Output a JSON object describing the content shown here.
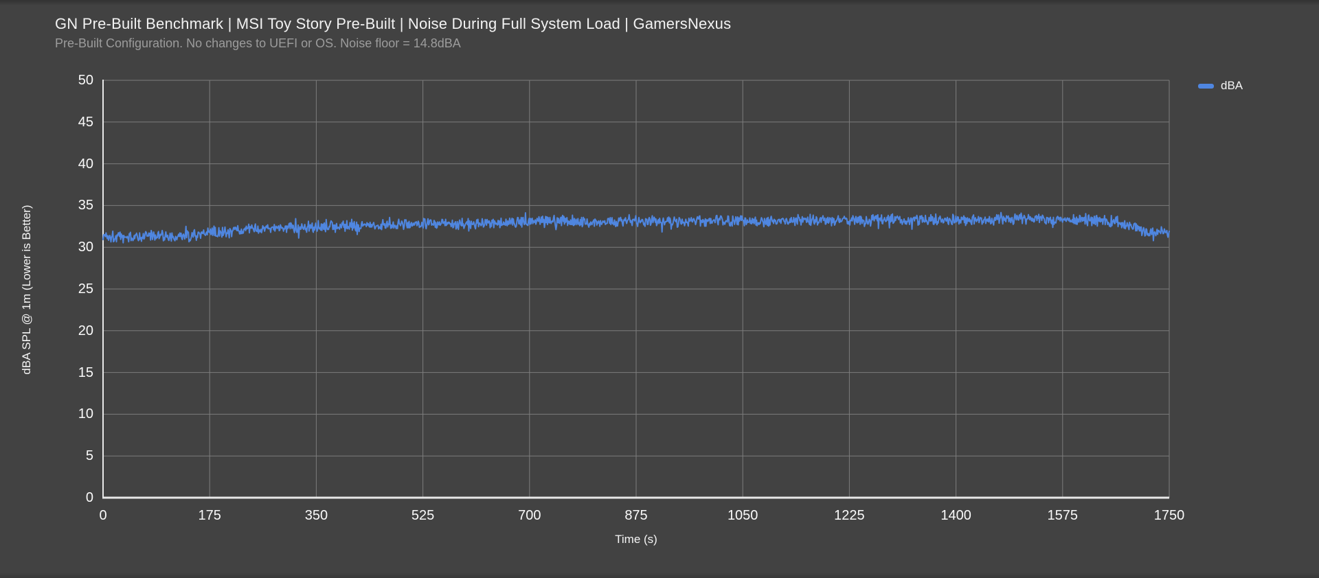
{
  "title": "GN Pre-Built Benchmark | MSI Toy Story Pre-Built | Noise During Full System Load | GamersNexus",
  "subtitle": "Pre-Built Configuration. No changes to UEFI or OS. Noise floor = 14.8dBA",
  "legend": {
    "label": "dBA",
    "swatch_color": "#4f86e0"
  },
  "colors": {
    "background": "#424242",
    "gridline": "#7d7d7d",
    "axis_line": "#e8e8e8",
    "title_text": "#f2f2f2",
    "subtitle_text": "#9c9c9c",
    "tick_text": "#fafafa",
    "series_blue": "#4f86e0"
  },
  "chart_data": {
    "type": "line",
    "title": "GN Pre-Built Benchmark | MSI Toy Story Pre-Built | Noise During Full System Load | GamersNexus",
    "subtitle": "Pre-Built Configuration. No changes to UEFI or OS. Noise floor = 14.8dBA",
    "xlabel": "Time (s)",
    "ylabel": "dBA SPL @ 1m (Lower is Better)",
    "xlim": [
      0,
      1750
    ],
    "ylim": [
      0,
      50
    ],
    "xticks": [
      0,
      175,
      350,
      525,
      700,
      875,
      1050,
      1225,
      1400,
      1575,
      1750
    ],
    "yticks": [
      0,
      5,
      10,
      15,
      20,
      25,
      30,
      35,
      40,
      45,
      50
    ],
    "grid": true,
    "legend_position": "right",
    "legend_entries": [
      "dBA"
    ],
    "series": [
      {
        "name": "dBA",
        "color": "#4f86e0",
        "trend_anchors": [
          [
            0,
            31.4
          ],
          [
            40,
            31.2
          ],
          [
            90,
            31.4
          ],
          [
            140,
            31.3
          ],
          [
            175,
            31.7
          ],
          [
            210,
            31.9
          ],
          [
            260,
            32.2
          ],
          [
            320,
            32.4
          ],
          [
            380,
            32.5
          ],
          [
            450,
            32.7
          ],
          [
            520,
            32.8
          ],
          [
            600,
            32.9
          ],
          [
            660,
            33.0
          ],
          [
            700,
            33.0
          ],
          [
            760,
            33.2
          ],
          [
            820,
            33.1
          ],
          [
            875,
            33.2
          ],
          [
            950,
            33.1
          ],
          [
            1020,
            33.2
          ],
          [
            1100,
            33.2
          ],
          [
            1180,
            33.2
          ],
          [
            1260,
            33.3
          ],
          [
            1340,
            33.3
          ],
          [
            1420,
            33.3
          ],
          [
            1500,
            33.4
          ],
          [
            1570,
            33.3
          ],
          [
            1620,
            33.3
          ],
          [
            1665,
            33.1
          ],
          [
            1685,
            32.6
          ],
          [
            1700,
            32.2
          ],
          [
            1715,
            31.9
          ],
          [
            1735,
            31.8
          ],
          [
            1750,
            31.6
          ]
        ],
        "noise": {
          "seed": 1337,
          "amplitude": 0.52,
          "hf_amplitude": 0.26,
          "spike_chance": 0.055,
          "spike_amplitude": 0.85
        },
        "points_count": 1750,
        "value_range_observed": [
          30.5,
          34.8
        ]
      }
    ]
  }
}
